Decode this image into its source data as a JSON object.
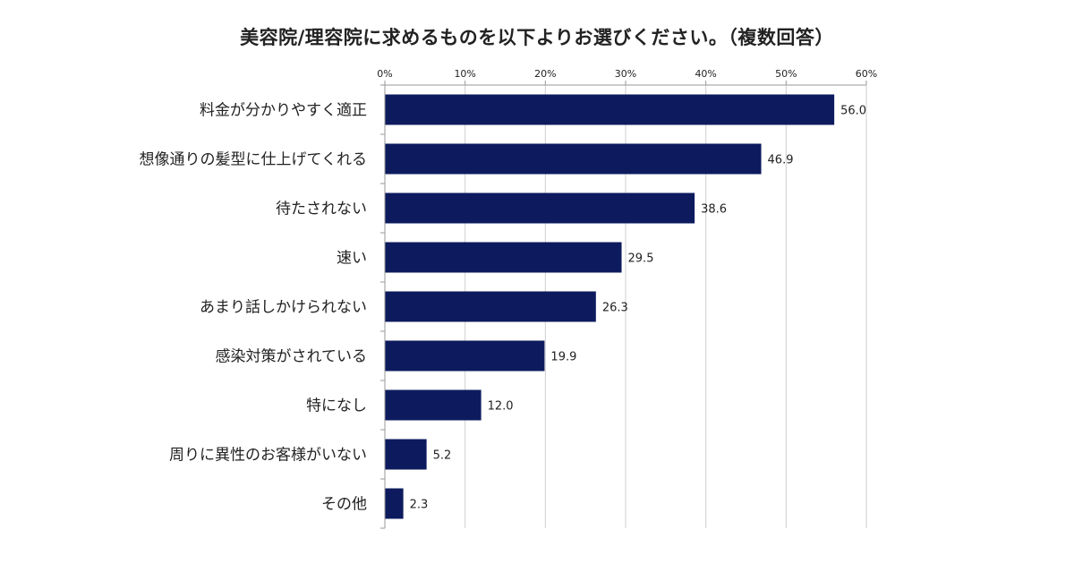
{
  "chart_data": {
    "type": "bar",
    "orientation": "horizontal",
    "title": "美容院/理容院に求めるものを以下よりお選びください。（複数回答）",
    "categories": [
      "料金が分かりやすく適正",
      "想像通りの髪型に仕上げてくれる",
      "待たされない",
      "速い",
      "あまり話しかけられない",
      "感染対策がされている",
      "特になし",
      "周りに異性のお客様がいない",
      "その他"
    ],
    "values": [
      56.0,
      46.9,
      38.6,
      29.5,
      26.3,
      19.9,
      12.0,
      5.2,
      2.3
    ],
    "value_labels": [
      "56.0",
      "46.9",
      "38.6",
      "29.5",
      "26.3",
      "19.9",
      "12.0",
      "5.2",
      "2.3"
    ],
    "x_ticks": [
      "0%",
      "10%",
      "20%",
      "30%",
      "40%",
      "50%",
      "60%"
    ],
    "xlim": [
      0,
      60
    ],
    "x_axis_position": "top",
    "grid": true,
    "bar_color": "#0d1b5e",
    "grid_color": "#cfcfcf",
    "axis_color": "#9a9a9a"
  }
}
